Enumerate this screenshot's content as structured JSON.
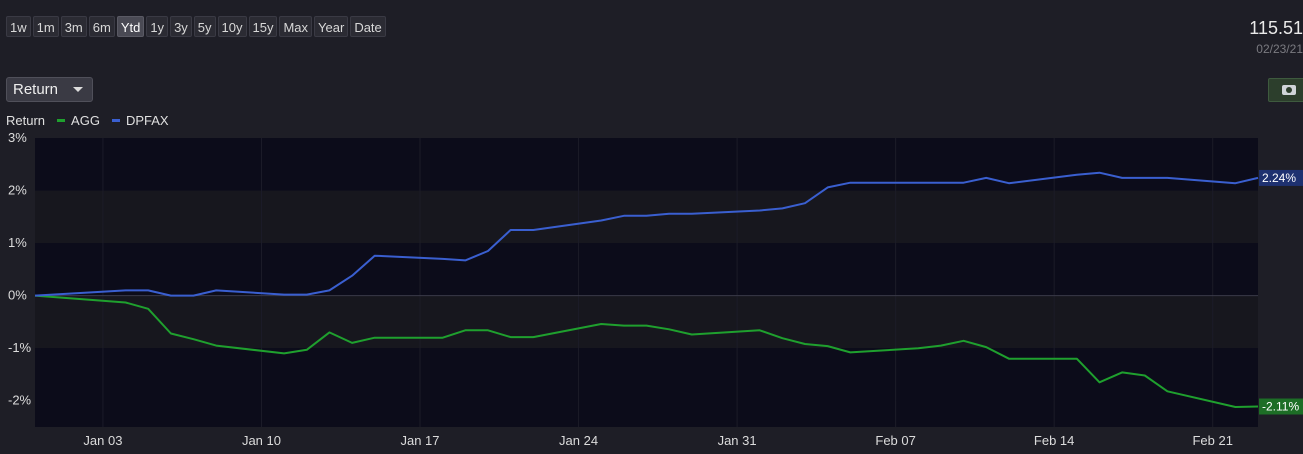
{
  "toolbar": {
    "ranges": [
      "1w",
      "1m",
      "3m",
      "6m",
      "Ytd",
      "1y",
      "3y",
      "5y",
      "10y",
      "15y",
      "Max",
      "Year",
      "Date"
    ],
    "active_range": "Ytd"
  },
  "header": {
    "price": "115.51",
    "date": "02/23/21"
  },
  "metric_select": {
    "value": "Return"
  },
  "legend": {
    "title": "Return"
  },
  "colors": {
    "agg": "#1fa02e",
    "dpfax": "#3a5fd0"
  },
  "chart_data": {
    "type": "line",
    "xlabel": "",
    "ylabel": "",
    "ylim": [
      -2.5,
      3
    ],
    "yticks": [
      {
        "value": 3,
        "label": "3%"
      },
      {
        "value": 2,
        "label": "2%"
      },
      {
        "value": 1,
        "label": "1%"
      },
      {
        "value": 0,
        "label": "0%"
      },
      {
        "value": -1,
        "label": "-1%"
      },
      {
        "value": -2,
        "label": "-2%"
      }
    ],
    "xticks": [
      {
        "date": "2021-01-03",
        "label": "Jan 03"
      },
      {
        "date": "2021-01-10",
        "label": "Jan 10"
      },
      {
        "date": "2021-01-17",
        "label": "Jan 17"
      },
      {
        "date": "2021-01-24",
        "label": "Jan 24"
      },
      {
        "date": "2021-01-31",
        "label": "Jan 31"
      },
      {
        "date": "2021-02-07",
        "label": "Feb 07"
      },
      {
        "date": "2021-02-14",
        "label": "Feb 14"
      },
      {
        "date": "2021-02-21",
        "label": "Feb 21"
      }
    ],
    "xlim": [
      "2020-12-31",
      "2021-02-23"
    ],
    "series": [
      {
        "name": "AGG",
        "color": "#1fa02e",
        "last_label": "-2.11%",
        "points": [
          [
            "2020-12-31",
            0.0
          ],
          [
            "2021-01-04",
            -0.13
          ],
          [
            "2021-01-05",
            -0.25
          ],
          [
            "2021-01-06",
            -0.72
          ],
          [
            "2021-01-07",
            -0.83
          ],
          [
            "2021-01-08",
            -0.95
          ],
          [
            "2021-01-11",
            -1.1
          ],
          [
            "2021-01-12",
            -1.03
          ],
          [
            "2021-01-13",
            -0.7
          ],
          [
            "2021-01-14",
            -0.9
          ],
          [
            "2021-01-15",
            -0.8
          ],
          [
            "2021-01-18",
            -0.8
          ],
          [
            "2021-01-19",
            -0.66
          ],
          [
            "2021-01-20",
            -0.66
          ],
          [
            "2021-01-21",
            -0.79
          ],
          [
            "2021-01-22",
            -0.79
          ],
          [
            "2021-01-25",
            -0.54
          ],
          [
            "2021-01-26",
            -0.57
          ],
          [
            "2021-01-27",
            -0.57
          ],
          [
            "2021-01-28",
            -0.64
          ],
          [
            "2021-01-29",
            -0.74
          ],
          [
            "2021-02-01",
            -0.66
          ],
          [
            "2021-02-02",
            -0.81
          ],
          [
            "2021-02-03",
            -0.92
          ],
          [
            "2021-02-04",
            -0.96
          ],
          [
            "2021-02-05",
            -1.08
          ],
          [
            "2021-02-08",
            -1.0
          ],
          [
            "2021-02-09",
            -0.95
          ],
          [
            "2021-02-10",
            -0.86
          ],
          [
            "2021-02-11",
            -0.98
          ],
          [
            "2021-02-12",
            -1.2
          ],
          [
            "2021-02-15",
            -1.2
          ],
          [
            "2021-02-16",
            -1.65
          ],
          [
            "2021-02-17",
            -1.46
          ],
          [
            "2021-02-18",
            -1.52
          ],
          [
            "2021-02-19",
            -1.82
          ],
          [
            "2021-02-22",
            -2.12
          ],
          [
            "2021-02-23",
            -2.11
          ]
        ]
      },
      {
        "name": "DPFAX",
        "color": "#3a5fd0",
        "last_label": "2.24%",
        "points": [
          [
            "2020-12-31",
            0.0
          ],
          [
            "2021-01-04",
            0.1
          ],
          [
            "2021-01-05",
            0.1
          ],
          [
            "2021-01-06",
            0.0
          ],
          [
            "2021-01-07",
            0.0
          ],
          [
            "2021-01-08",
            0.1
          ],
          [
            "2021-01-11",
            0.02
          ],
          [
            "2021-01-12",
            0.02
          ],
          [
            "2021-01-13",
            0.1
          ],
          [
            "2021-01-14",
            0.38
          ],
          [
            "2021-01-15",
            0.76
          ],
          [
            "2021-01-18",
            0.7
          ],
          [
            "2021-01-19",
            0.67
          ],
          [
            "2021-01-20",
            0.85
          ],
          [
            "2021-01-21",
            1.25
          ],
          [
            "2021-01-22",
            1.25
          ],
          [
            "2021-01-25",
            1.43
          ],
          [
            "2021-01-26",
            1.52
          ],
          [
            "2021-01-27",
            1.52
          ],
          [
            "2021-01-28",
            1.56
          ],
          [
            "2021-01-29",
            1.56
          ],
          [
            "2021-02-01",
            1.62
          ],
          [
            "2021-02-02",
            1.66
          ],
          [
            "2021-02-03",
            1.76
          ],
          [
            "2021-02-04",
            2.06
          ],
          [
            "2021-02-05",
            2.15
          ],
          [
            "2021-02-08",
            2.15
          ],
          [
            "2021-02-09",
            2.15
          ],
          [
            "2021-02-10",
            2.15
          ],
          [
            "2021-02-11",
            2.24
          ],
          [
            "2021-02-12",
            2.14
          ],
          [
            "2021-02-15",
            2.3
          ],
          [
            "2021-02-16",
            2.34
          ],
          [
            "2021-02-17",
            2.24
          ],
          [
            "2021-02-18",
            2.24
          ],
          [
            "2021-02-19",
            2.24
          ],
          [
            "2021-02-22",
            2.14
          ],
          [
            "2021-02-23",
            2.24
          ]
        ]
      }
    ],
    "grid": true,
    "legend_position": "top-left"
  }
}
